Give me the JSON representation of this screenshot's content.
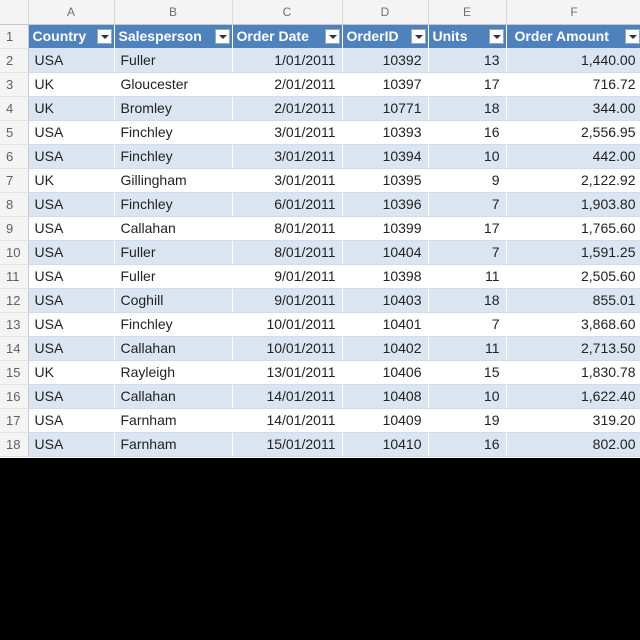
{
  "columns": [
    "A",
    "B",
    "C",
    "D",
    "E",
    "F"
  ],
  "headers": [
    "Country",
    "Salesperson",
    "Order Date",
    "OrderID",
    "Units",
    "Order Amount"
  ],
  "rows": [
    {
      "n": "2",
      "c": [
        "USA",
        "Fuller",
        "1/01/2011",
        "10392",
        "13",
        "1,440.00"
      ]
    },
    {
      "n": "3",
      "c": [
        "UK",
        "Gloucester",
        "2/01/2011",
        "10397",
        "17",
        "716.72"
      ]
    },
    {
      "n": "4",
      "c": [
        "UK",
        "Bromley",
        "2/01/2011",
        "10771",
        "18",
        "344.00"
      ]
    },
    {
      "n": "5",
      "c": [
        "USA",
        "Finchley",
        "3/01/2011",
        "10393",
        "16",
        "2,556.95"
      ]
    },
    {
      "n": "6",
      "c": [
        "USA",
        "Finchley",
        "3/01/2011",
        "10394",
        "10",
        "442.00"
      ]
    },
    {
      "n": "7",
      "c": [
        "UK",
        "Gillingham",
        "3/01/2011",
        "10395",
        "9",
        "2,122.92"
      ]
    },
    {
      "n": "8",
      "c": [
        "USA",
        "Finchley",
        "6/01/2011",
        "10396",
        "7",
        "1,903.80"
      ]
    },
    {
      "n": "9",
      "c": [
        "USA",
        "Callahan",
        "8/01/2011",
        "10399",
        "17",
        "1,765.60"
      ]
    },
    {
      "n": "10",
      "c": [
        "USA",
        "Fuller",
        "8/01/2011",
        "10404",
        "7",
        "1,591.25"
      ]
    },
    {
      "n": "11",
      "c": [
        "USA",
        "Fuller",
        "9/01/2011",
        "10398",
        "11",
        "2,505.60"
      ]
    },
    {
      "n": "12",
      "c": [
        "USA",
        "Coghill",
        "9/01/2011",
        "10403",
        "18",
        "855.01"
      ]
    },
    {
      "n": "13",
      "c": [
        "USA",
        "Finchley",
        "10/01/2011",
        "10401",
        "7",
        "3,868.60"
      ]
    },
    {
      "n": "14",
      "c": [
        "USA",
        "Callahan",
        "10/01/2011",
        "10402",
        "11",
        "2,713.50"
      ]
    },
    {
      "n": "15",
      "c": [
        "UK",
        "Rayleigh",
        "13/01/2011",
        "10406",
        "15",
        "1,830.78"
      ]
    },
    {
      "n": "16",
      "c": [
        "USA",
        "Callahan",
        "14/01/2011",
        "10408",
        "10",
        "1,622.40"
      ]
    },
    {
      "n": "17",
      "c": [
        "USA",
        "Farnham",
        "14/01/2011",
        "10409",
        "19",
        "319.20"
      ]
    },
    {
      "n": "18",
      "c": [
        "USA",
        "Farnham",
        "15/01/2011",
        "10410",
        "16",
        "802.00"
      ]
    }
  ],
  "colors": {
    "header_bg": "#4f81bd",
    "band": "#dbe5f1"
  }
}
